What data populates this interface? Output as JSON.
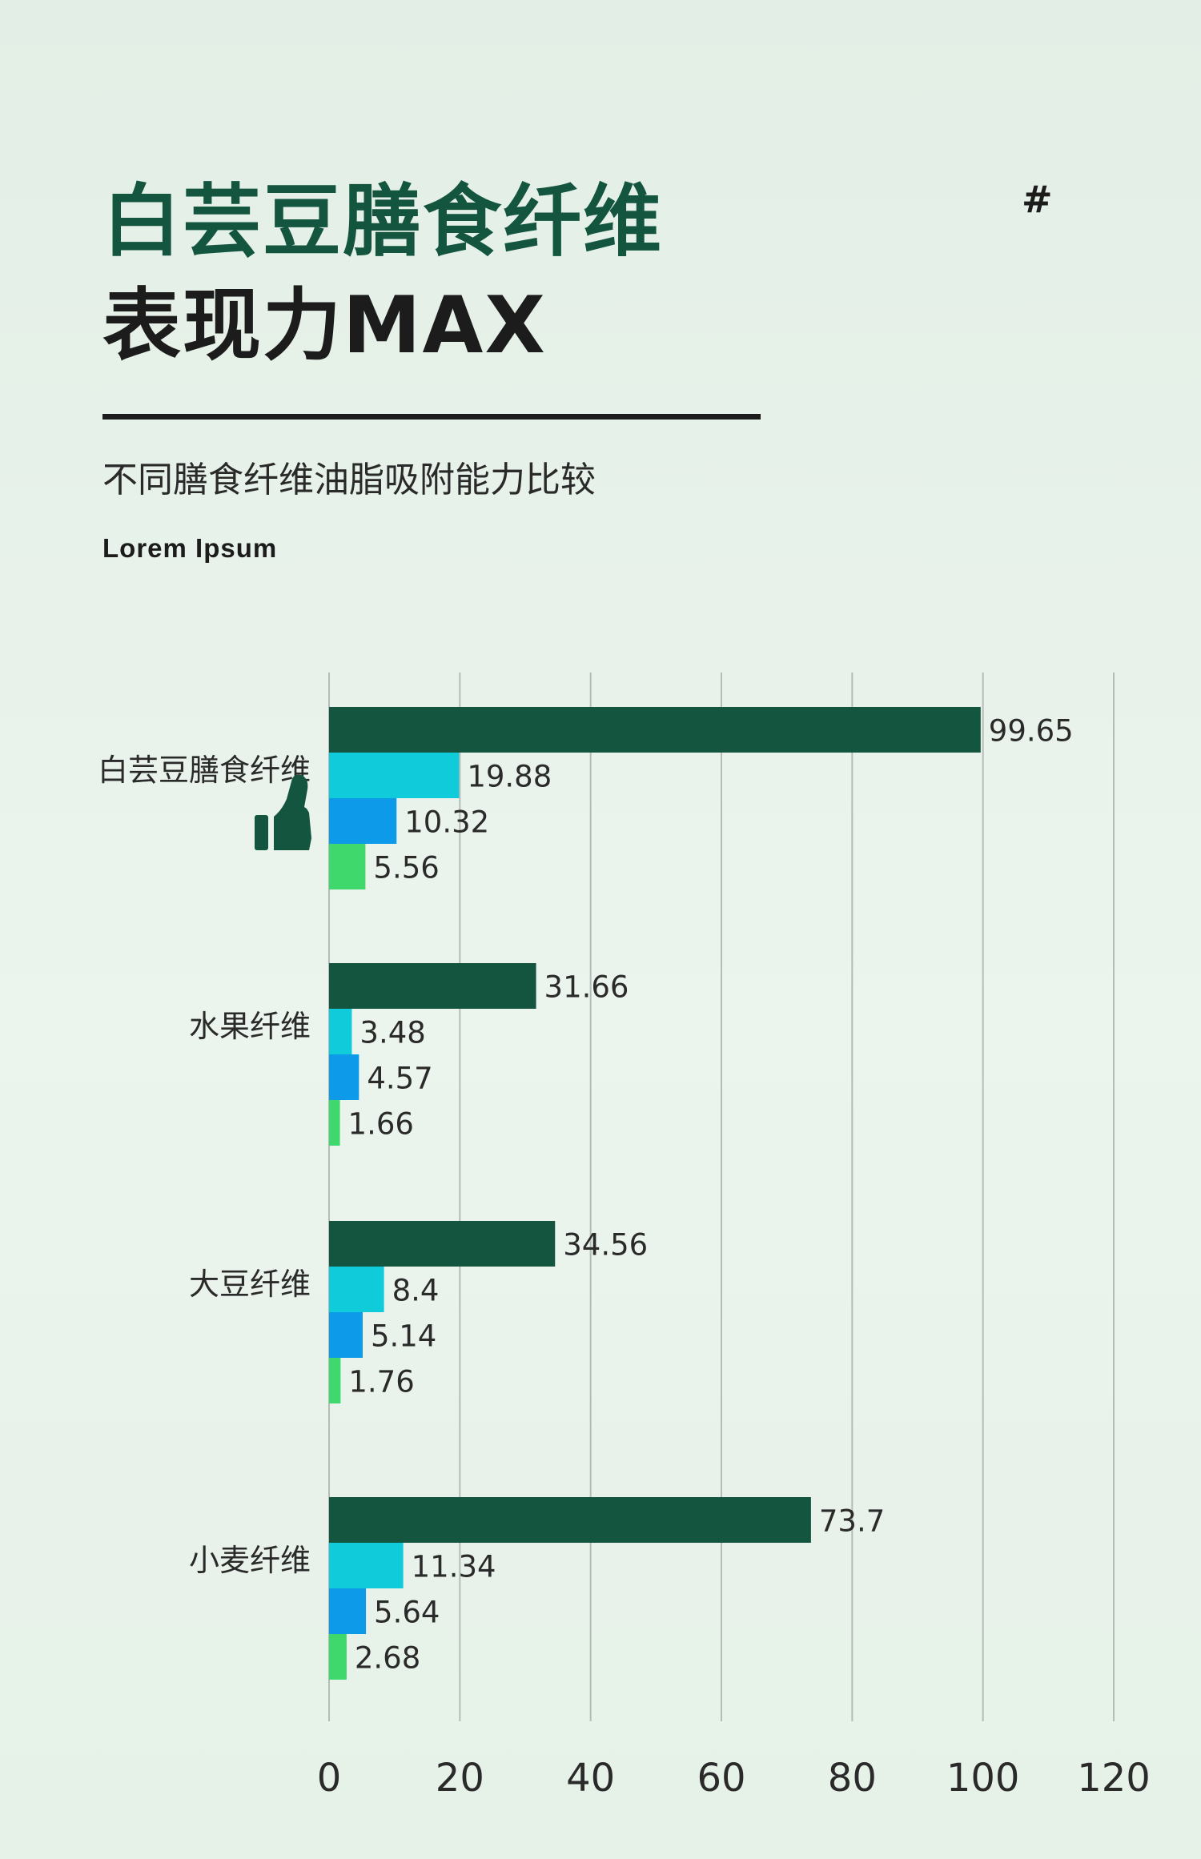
{
  "header": {
    "title_line1": "白芸豆膳食纤维",
    "title_line2": "表现力MAX",
    "hash": "#",
    "subtitle": "不同膳食纤维油脂吸附能力比较",
    "lorem": "Lorem Ipsum"
  },
  "colors": {
    "dark_green": "#14553f",
    "cyan": "#10cbd9",
    "blue": "#0d9ae9",
    "light_green": "#3ed86d",
    "grid": "#b5bcb7",
    "text": "#2a2a2a"
  },
  "icons": {
    "category_0": "thumbs-up-icon"
  },
  "chart_data": {
    "type": "bar",
    "orientation": "horizontal",
    "title": "",
    "xlabel": "",
    "ylabel": "",
    "xlim": [
      0,
      120
    ],
    "xticks": [
      0,
      20,
      40,
      60,
      80,
      100,
      120
    ],
    "xtick_labels": [
      "0",
      "20",
      "40",
      "60",
      "80",
      "100",
      "120"
    ],
    "grid": "vertical",
    "legend": "none",
    "categories": [
      "白芸豆膳食纤维",
      "水果纤维",
      "大豆纤维",
      "小麦纤维"
    ],
    "series": [
      {
        "color": "#14553f",
        "values": [
          99.65,
          31.66,
          34.56,
          73.7
        ],
        "labels": [
          "99.65",
          "31.66",
          "34.56",
          "73.7"
        ]
      },
      {
        "color": "#10cbd9",
        "values": [
          19.88,
          3.48,
          8.4,
          11.34
        ],
        "labels": [
          "19.88",
          "3.48",
          "8.4",
          "11.34"
        ]
      },
      {
        "color": "#0d9ae9",
        "values": [
          10.32,
          4.57,
          5.14,
          5.64
        ],
        "labels": [
          "10.32",
          "4.57",
          "5.14",
          "5.64"
        ]
      },
      {
        "color": "#3ed86d",
        "values": [
          5.56,
          1.66,
          1.76,
          2.68
        ],
        "labels": [
          "5.56",
          "1.66",
          "1.76",
          "2.68"
        ]
      }
    ]
  }
}
